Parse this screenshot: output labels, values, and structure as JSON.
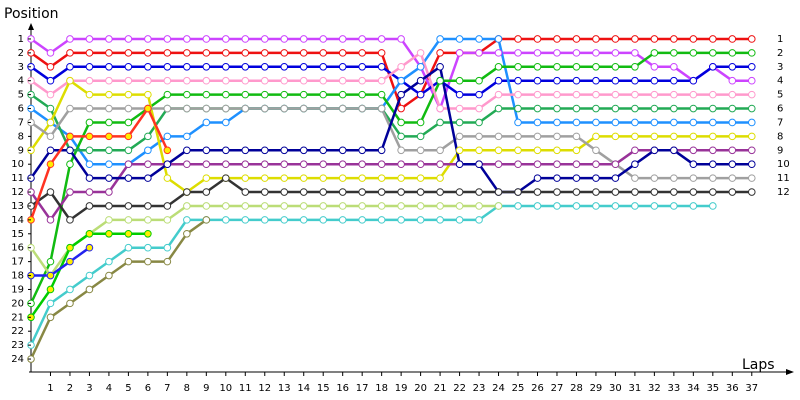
{
  "chart_data": {
    "type": "lapchart",
    "y_label": "Position",
    "x_label": "Laps",
    "x": [
      0,
      1,
      2,
      3,
      4,
      5,
      6,
      7,
      8,
      9,
      10,
      11,
      12,
      13,
      14,
      15,
      16,
      17,
      18,
      19,
      20,
      21,
      22,
      23,
      24,
      25,
      26,
      27,
      28,
      29,
      30,
      31,
      32,
      33,
      34,
      35,
      36,
      37
    ],
    "xlim": [
      0,
      38.5
    ],
    "xticks": [
      1,
      2,
      3,
      4,
      5,
      6,
      7,
      8,
      9,
      10,
      11,
      12,
      13,
      14,
      15,
      16,
      17,
      18,
      19,
      20,
      21,
      22,
      23,
      24,
      25,
      26,
      27,
      28,
      29,
      30,
      31,
      32,
      33,
      34,
      35,
      36,
      37
    ],
    "ylim": [
      0.5,
      24.5
    ],
    "y_inverted": true,
    "yticks": [
      1,
      2,
      3,
      4,
      5,
      6,
      7,
      8,
      9,
      10,
      11,
      12,
      13,
      14,
      15,
      16,
      17,
      18,
      19,
      20,
      21,
      22,
      23,
      24
    ],
    "series": [
      {
        "color": "#ee1111",
        "values": [
          2,
          3,
          2,
          2,
          2,
          2,
          2,
          2,
          2,
          2,
          2,
          2,
          2,
          2,
          2,
          2,
          2,
          2,
          2,
          6,
          5,
          2,
          2,
          2,
          1,
          1,
          1,
          1,
          1,
          1,
          1,
          1,
          1,
          1,
          1,
          1,
          1,
          1
        ]
      },
      {
        "color": "#cc44ff",
        "values": [
          1,
          2,
          1,
          1,
          1,
          1,
          1,
          1,
          1,
          1,
          1,
          1,
          1,
          1,
          1,
          1,
          1,
          1,
          1,
          1,
          3,
          6,
          2,
          2,
          2,
          2,
          2,
          2,
          2,
          2,
          2,
          2,
          3,
          3,
          4,
          3,
          4,
          4
        ]
      },
      {
        "color": "#0000dd",
        "values": [
          3,
          4,
          3,
          3,
          3,
          3,
          3,
          3,
          3,
          3,
          3,
          3,
          3,
          3,
          3,
          3,
          3,
          3,
          3,
          4,
          5,
          4,
          5,
          5,
          4,
          4,
          4,
          4,
          4,
          4,
          4,
          4,
          4,
          4,
          4,
          3,
          3,
          3
        ]
      },
      {
        "color": "#1e90ff",
        "values": [
          6,
          7,
          8,
          10,
          10,
          10,
          9,
          8,
          8,
          7,
          7,
          6,
          6,
          6,
          6,
          6,
          6,
          6,
          6,
          4,
          3,
          1,
          1,
          1,
          1,
          7,
          7,
          7,
          7,
          7,
          7,
          7,
          7,
          7,
          7,
          7,
          7,
          7
        ]
      },
      {
        "color": "#11bb11",
        "values": [
          20,
          17,
          10,
          7,
          7,
          7,
          6,
          5,
          5,
          5,
          5,
          5,
          5,
          5,
          5,
          5,
          5,
          5,
          5,
          7,
          7,
          4,
          4,
          4,
          3,
          3,
          3,
          3,
          3,
          3,
          3,
          3,
          2,
          2,
          2,
          2,
          2,
          2
        ]
      },
      {
        "color": "#ff99cc",
        "values": [
          4,
          5,
          4,
          4,
          4,
          4,
          4,
          4,
          4,
          4,
          4,
          4,
          4,
          4,
          4,
          4,
          4,
          4,
          4,
          3,
          2,
          6,
          6,
          6,
          5,
          5,
          5,
          5,
          5,
          5,
          5,
          5,
          5,
          5,
          5,
          5,
          5,
          5
        ]
      },
      {
        "color": "#22aa55",
        "values": [
          5,
          6,
          9,
          9,
          9,
          9,
          8,
          6,
          6,
          6,
          6,
          6,
          6,
          6,
          6,
          6,
          6,
          6,
          6,
          8,
          8,
          7,
          7,
          7,
          6,
          6,
          6,
          6,
          6,
          6,
          6,
          6,
          6,
          6,
          6,
          6,
          6,
          6
        ]
      },
      {
        "color": "#dddd00",
        "values": [
          9,
          7,
          4,
          5,
          5,
          5,
          5,
          11,
          12,
          11,
          11,
          11,
          11,
          11,
          11,
          11,
          11,
          11,
          11,
          11,
          11,
          11,
          9,
          9,
          9,
          9,
          9,
          9,
          9,
          8,
          8,
          8,
          8,
          8,
          8,
          8,
          8,
          8
        ]
      },
      {
        "color": "#a0a0a0",
        "values": [
          7,
          8,
          6,
          6,
          6,
          6,
          6,
          6,
          6,
          6,
          6,
          6,
          6,
          6,
          6,
          6,
          6,
          6,
          6,
          9,
          9,
          9,
          8,
          8,
          8,
          8,
          8,
          8,
          8,
          9,
          10,
          11,
          11,
          11,
          11,
          11,
          11,
          11
        ]
      },
      {
        "color": "#993399",
        "values": [
          12,
          14,
          12,
          12,
          12,
          10,
          10,
          10,
          10,
          10,
          10,
          10,
          10,
          10,
          10,
          10,
          10,
          10,
          10,
          10,
          10,
          10,
          10,
          10,
          10,
          10,
          10,
          10,
          10,
          10,
          10,
          9,
          9,
          9,
          9,
          9,
          9,
          9
        ]
      },
      {
        "color": "#000099",
        "values": [
          11,
          9,
          9,
          11,
          11,
          11,
          11,
          10,
          9,
          9,
          9,
          9,
          9,
          9,
          9,
          9,
          9,
          9,
          9,
          5,
          4,
          3,
          10,
          10,
          12,
          12,
          11,
          11,
          11,
          11,
          11,
          10,
          9,
          9,
          10,
          10,
          10,
          10
        ]
      },
      {
        "color": "#333333",
        "values": [
          13,
          12,
          14,
          13,
          13,
          13,
          13,
          13,
          12,
          12,
          11,
          12,
          12,
          12,
          12,
          12,
          12,
          12,
          12,
          12,
          12,
          12,
          12,
          12,
          12,
          12,
          12,
          12,
          12,
          12,
          12,
          12,
          12,
          12,
          12,
          12,
          12,
          12
        ]
      },
      {
        "color": "#44cccc",
        "values": [
          23,
          20,
          19,
          18,
          17,
          16,
          16,
          16,
          14,
          14,
          14,
          14,
          14,
          14,
          14,
          14,
          14,
          14,
          14,
          14,
          14,
          14,
          14,
          14,
          13,
          13,
          13,
          13,
          13,
          13,
          13,
          13,
          13,
          13,
          13,
          13,
          null,
          null
        ]
      },
      {
        "color": "#bbdd77",
        "values": [
          16,
          18,
          16,
          15,
          14,
          14,
          14,
          14,
          13,
          13,
          13,
          13,
          13,
          13,
          13,
          13,
          13,
          13,
          13,
          13,
          13,
          13,
          13,
          13,
          13,
          null,
          null,
          null,
          null,
          null,
          null,
          null,
          null,
          null,
          null,
          null,
          null,
          null
        ]
      },
      {
        "color": "#888844",
        "values": [
          24,
          21,
          20,
          19,
          18,
          17,
          17,
          17,
          15,
          14,
          null,
          null,
          null,
          null,
          null,
          null,
          null,
          null,
          null,
          null,
          null,
          null,
          null,
          null,
          null,
          null,
          null,
          null,
          null,
          null,
          null,
          null,
          null,
          null,
          null,
          null,
          null,
          null
        ]
      },
      {
        "color": "#ff3322",
        "marker_fill": "#ffee00",
        "values": [
          14,
          10,
          8,
          8,
          8,
          8,
          6,
          9,
          null,
          null,
          null,
          null,
          null,
          null,
          null,
          null,
          null,
          null,
          null,
          null,
          null,
          null,
          null,
          null,
          null,
          null,
          null,
          null,
          null,
          null,
          null,
          null,
          null,
          null,
          null,
          null,
          null,
          null
        ]
      },
      {
        "color": "#00cc00",
        "marker_fill": "#ffee00",
        "values": [
          21,
          19,
          16,
          15,
          15,
          15,
          15,
          null,
          null,
          null,
          null,
          null,
          null,
          null,
          null,
          null,
          null,
          null,
          null,
          null,
          null,
          null,
          null,
          null,
          null,
          null,
          null,
          null,
          null,
          null,
          null,
          null,
          null,
          null,
          null,
          null,
          null,
          null
        ]
      },
      {
        "color": "#2222ee",
        "marker_fill": "#ffee00",
        "values": [
          18,
          18,
          17,
          16,
          null,
          null,
          null,
          null,
          null,
          null,
          null,
          null,
          null,
          null,
          null,
          null,
          null,
          null,
          null,
          null,
          null,
          null,
          null,
          null,
          null,
          null,
          null,
          null,
          null,
          null,
          null,
          null,
          null,
          null,
          null,
          null,
          null,
          null
        ]
      }
    ]
  }
}
